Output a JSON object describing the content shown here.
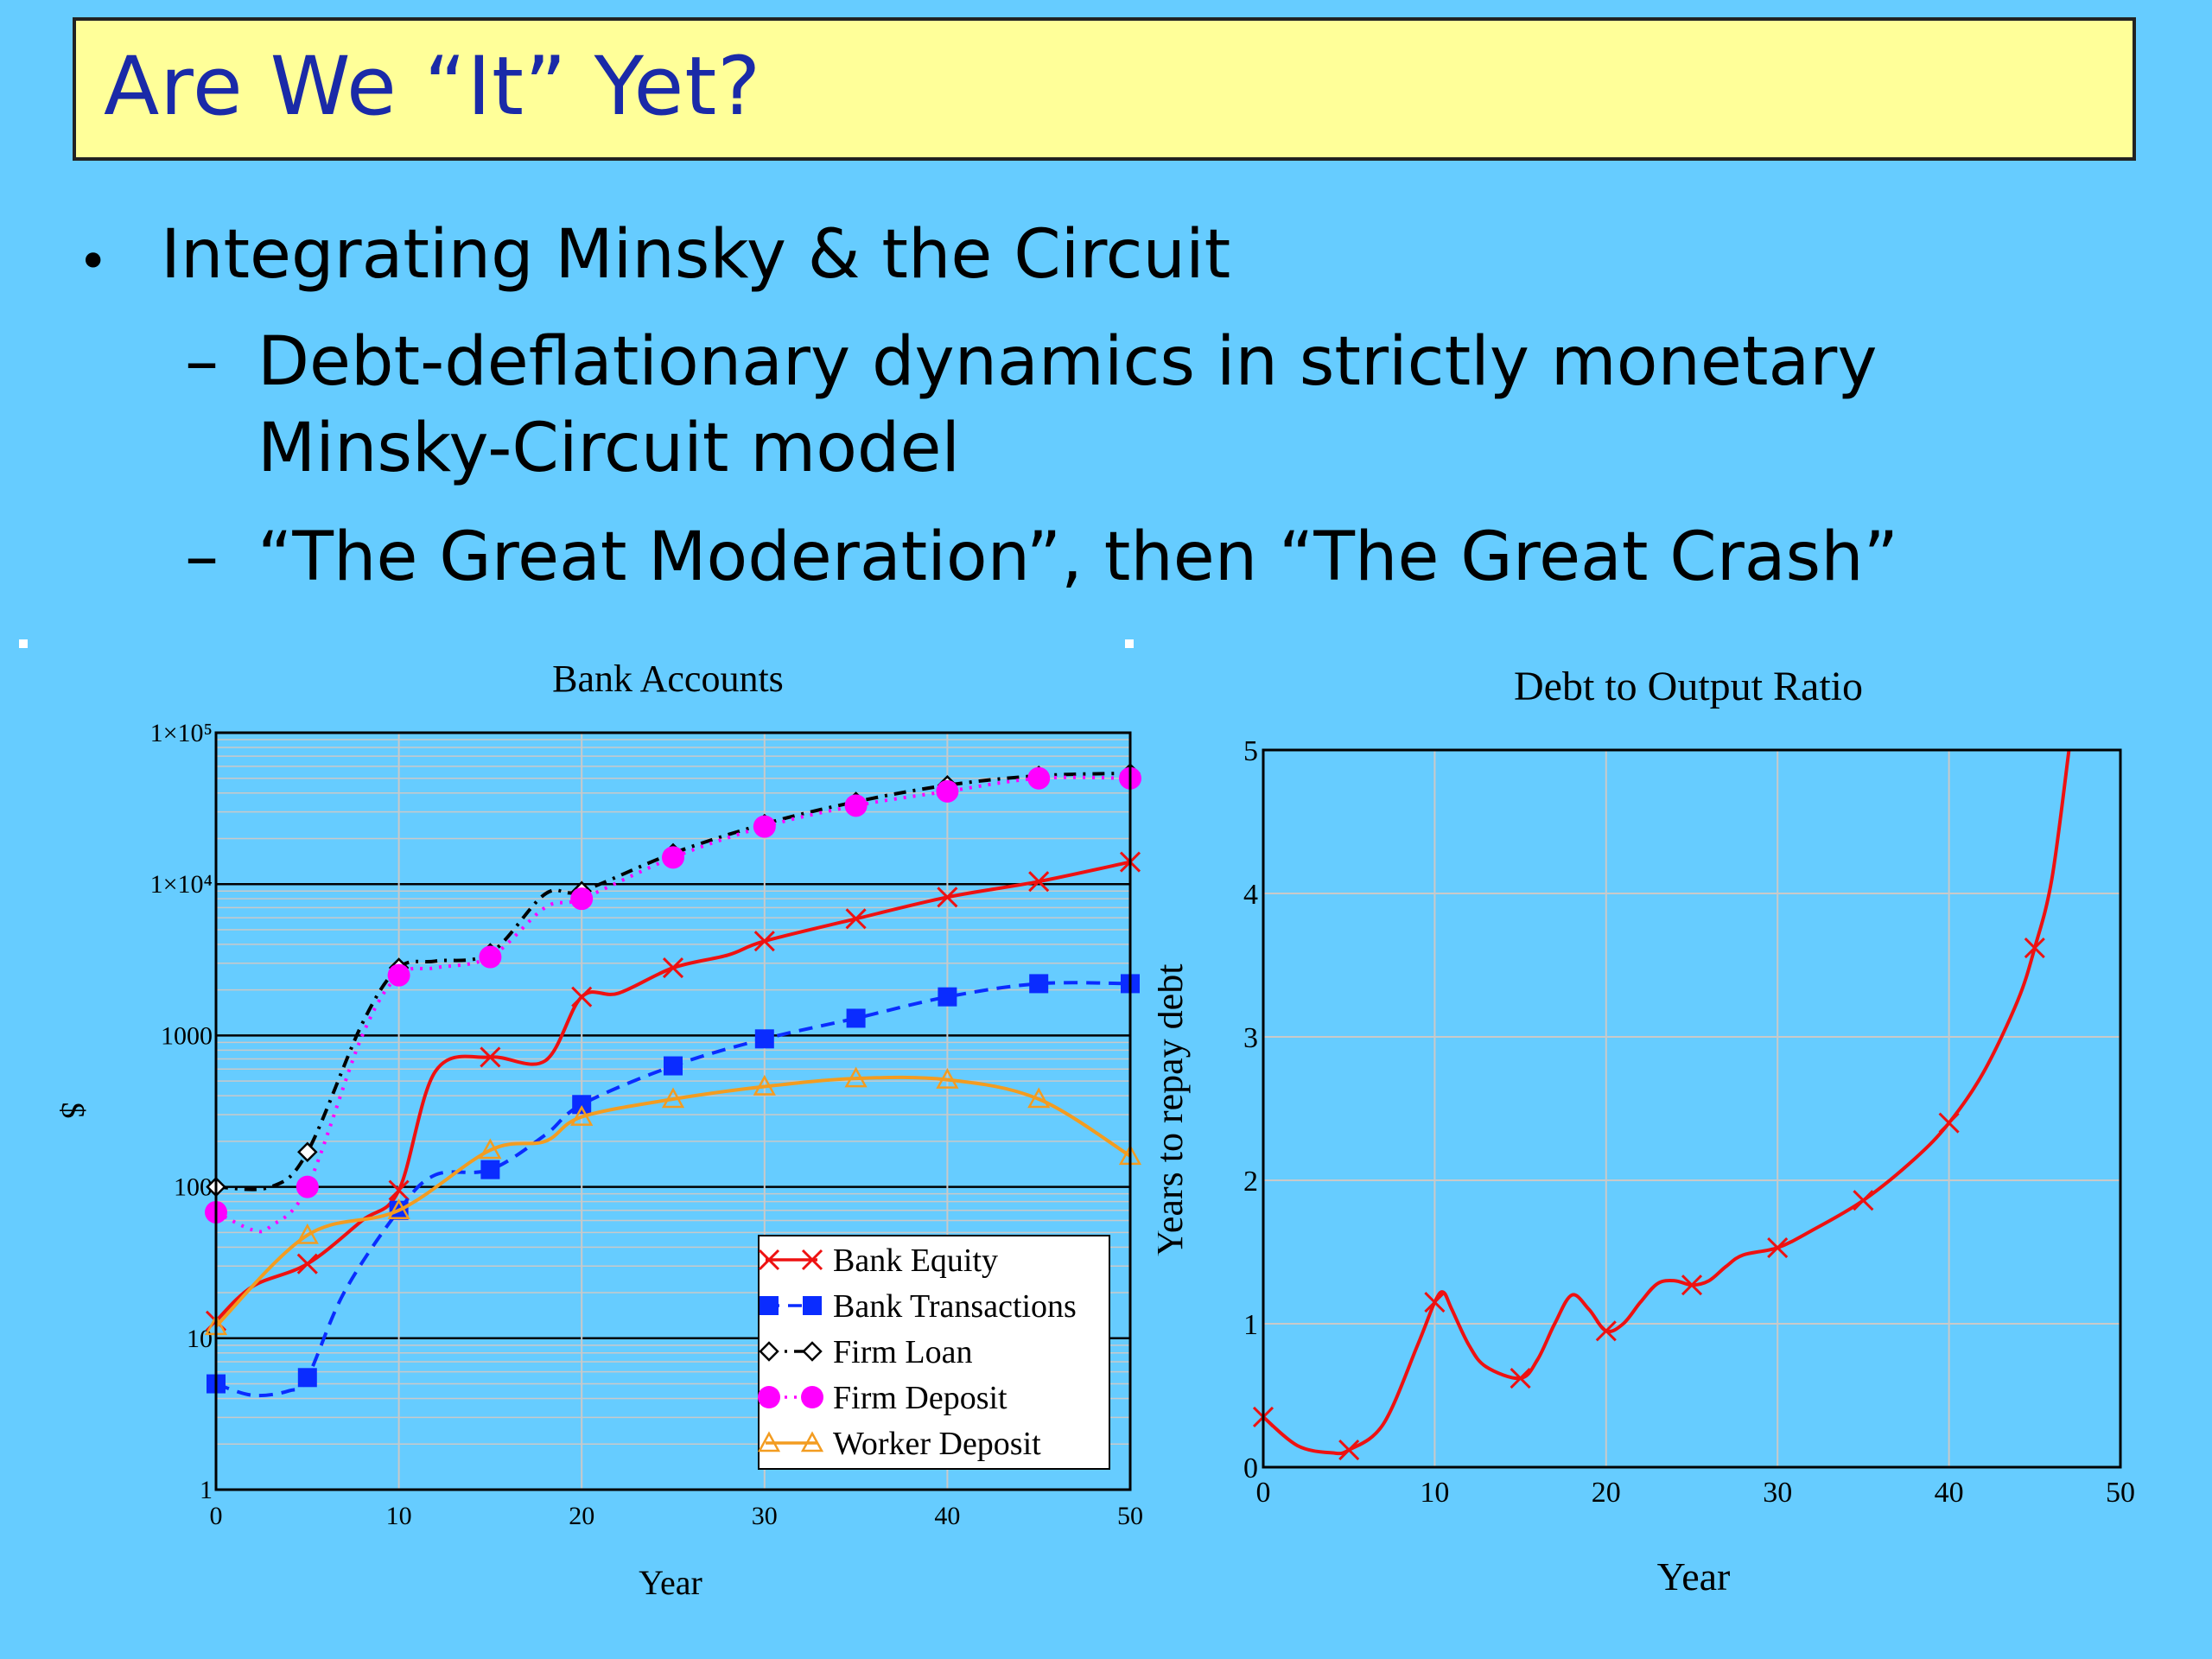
{
  "slide": {
    "title": "Are We “It” Yet?",
    "bullets": [
      {
        "level": 1,
        "text": "Integrating Minsky & the Circuit"
      },
      {
        "level": 2,
        "text": "Debt-deflationary dynamics in strictly monetary"
      },
      {
        "level": 2,
        "text": "Minsky-Circuit model",
        "continuation": true
      },
      {
        "level": 2,
        "text": "“The Great Moderation”, then “The Great Crash”"
      }
    ],
    "colors": {
      "background": "#66ccff",
      "title_box": "#ffff99",
      "title_text": "#1a2aa8"
    }
  },
  "chart_data": [
    {
      "type": "line",
      "title": "Bank Accounts",
      "xlabel": "Year",
      "ylabel": "$",
      "yscale": "log",
      "xlim": [
        0,
        50
      ],
      "ylim": [
        1,
        100000
      ],
      "xticks": [
        "0",
        "10",
        "20",
        "30",
        "40",
        "50"
      ],
      "yticks": [
        "1",
        "10",
        "100",
        "1000",
        "1×10⁴",
        "1×10⁵"
      ],
      "legend_position": "bottom-right",
      "grid": true,
      "series": [
        {
          "name": "Bank Equity",
          "color": "#ee1111",
          "marker": "x",
          "dash": "solid",
          "x": [
            0,
            2,
            5,
            8,
            10,
            12,
            15,
            18,
            20,
            22,
            25,
            28,
            30,
            35,
            40,
            45,
            50
          ],
          "y": [
            13,
            22,
            31,
            60,
            95,
            580,
            720,
            680,
            1800,
            1900,
            2800,
            3400,
            4200,
            5900,
            8200,
            10400,
            14000
          ],
          "marker_x": [
            0,
            5,
            10,
            15,
            20,
            25,
            30,
            35,
            40,
            45,
            50
          ]
        },
        {
          "name": "Bank Transactions",
          "color": "#0a2cff",
          "marker": "square",
          "dash": "dash",
          "x": [
            0,
            2,
            4,
            5,
            7,
            10,
            12,
            15,
            18,
            20,
            25,
            30,
            35,
            40,
            45,
            50
          ],
          "y": [
            5,
            4.2,
            4.5,
            5.5,
            20,
            70,
            120,
            130,
            220,
            350,
            630,
            950,
            1300,
            1800,
            2200,
            2200
          ],
          "marker_x": [
            0,
            5,
            10,
            15,
            20,
            25,
            30,
            35,
            40,
            45,
            50
          ]
        },
        {
          "name": "Firm Loan",
          "color": "#000000",
          "marker": "diamond",
          "dash": "dashdot",
          "x": [
            0,
            3,
            5,
            8,
            10,
            12,
            15,
            18,
            20,
            25,
            30,
            35,
            40,
            45,
            50
          ],
          "y": [
            100,
            100,
            170,
            1200,
            2800,
            3100,
            3500,
            8600,
            9000,
            16000,
            25000,
            35000,
            45000,
            52000,
            54000
          ],
          "marker_x": [
            0,
            5,
            10,
            15,
            20,
            25,
            30,
            35,
            40,
            45,
            50
          ]
        },
        {
          "name": "Firm Deposit",
          "color": "#ff00ff",
          "marker": "circle",
          "dash": "dot",
          "x": [
            0,
            2,
            3,
            5,
            8,
            10,
            12,
            15,
            18,
            20,
            25,
            30,
            35,
            40,
            45,
            50
          ],
          "y": [
            68,
            52,
            55,
            100,
            1000,
            2500,
            2800,
            3300,
            7000,
            8000,
            15000,
            24000,
            33000,
            41000,
            50000,
            50000
          ],
          "marker_x": [
            0,
            5,
            10,
            15,
            20,
            25,
            30,
            35,
            40,
            45,
            50
          ]
        },
        {
          "name": "Worker Deposit",
          "color": "#f39c20",
          "marker": "triangle",
          "dash": "solid",
          "x": [
            0,
            5,
            10,
            15,
            18,
            20,
            25,
            30,
            35,
            40,
            45,
            50
          ],
          "y": [
            12,
            48,
            70,
            175,
            200,
            290,
            380,
            460,
            520,
            510,
            380,
            160
          ],
          "marker_x": [
            0,
            5,
            10,
            15,
            20,
            25,
            30,
            35,
            40,
            45,
            50
          ]
        }
      ]
    },
    {
      "type": "line",
      "title": "Debt to Output Ratio",
      "xlabel": "Year",
      "ylabel": "Years to repay debt",
      "xlim": [
        0,
        50
      ],
      "ylim": [
        0,
        5
      ],
      "xticks": [
        "0",
        "10",
        "20",
        "30",
        "40",
        "50"
      ],
      "yticks": [
        "0",
        "1",
        "2",
        "3",
        "4",
        "5"
      ],
      "grid": true,
      "series": [
        {
          "name": "",
          "color": "#ee1111",
          "marker": "x",
          "x": [
            0,
            2,
            4,
            5,
            7,
            9,
            10,
            10.5,
            11,
            12,
            13,
            15,
            16,
            17,
            18,
            19,
            20,
            21,
            22,
            23,
            24,
            25,
            26,
            27,
            28,
            30,
            32,
            35,
            38,
            40,
            42,
            44,
            45,
            46,
            47
          ],
          "y": [
            0.35,
            0.15,
            0.1,
            0.12,
            0.3,
            0.85,
            1.15,
            1.22,
            1.1,
            0.85,
            0.7,
            0.62,
            0.75,
            1.0,
            1.2,
            1.1,
            0.95,
            1.0,
            1.15,
            1.28,
            1.3,
            1.27,
            1.3,
            1.4,
            1.48,
            1.53,
            1.65,
            1.86,
            2.15,
            2.4,
            2.75,
            3.25,
            3.62,
            4.1,
            5.0
          ],
          "marker_x": [
            0,
            5,
            10,
            15,
            20,
            25,
            30,
            35,
            40,
            45
          ]
        }
      ]
    }
  ]
}
